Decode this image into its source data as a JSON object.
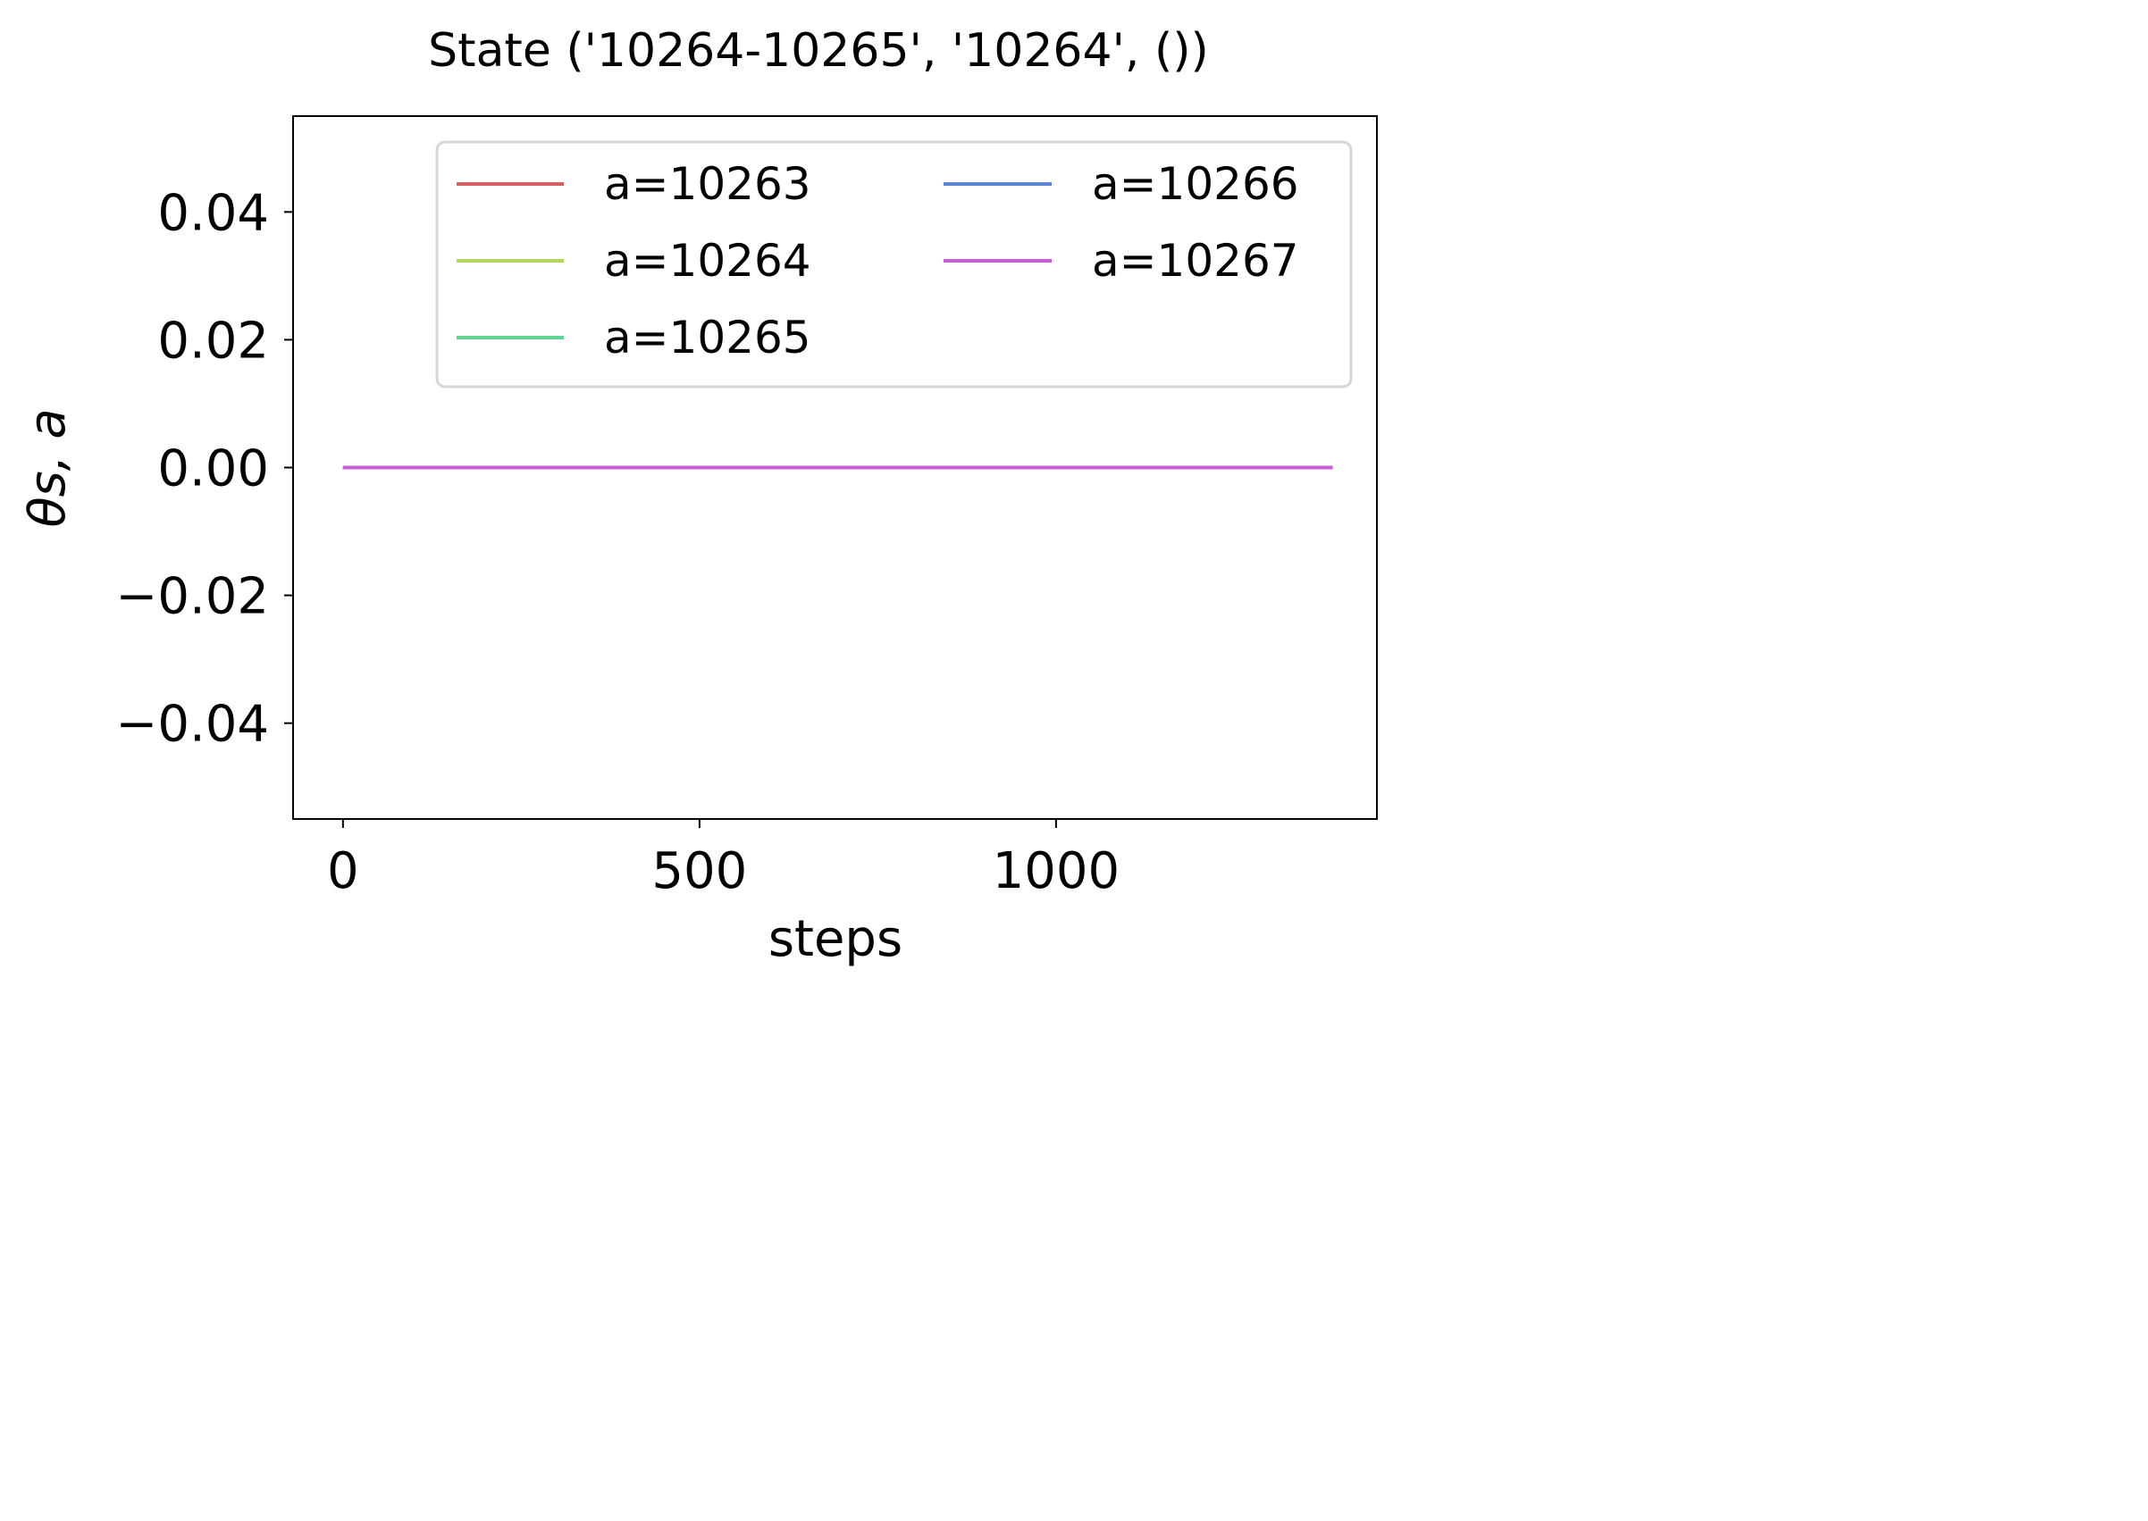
{
  "chart_data": {
    "type": "line",
    "title": "State ('10264-10265', '10264', ())",
    "xlabel": "steps",
    "ylabel": "θs, a",
    "xlim": [
      -70,
      1450
    ],
    "ylim": [
      -0.055,
      0.055
    ],
    "x_ticks": [
      {
        "value": 0,
        "label": "0"
      },
      {
        "value": 500,
        "label": "500"
      },
      {
        "value": 1000,
        "label": "1000"
      }
    ],
    "y_ticks": [
      {
        "value": 0.04,
        "label": "0.04"
      },
      {
        "value": 0.02,
        "label": "0.02"
      },
      {
        "value": 0.0,
        "label": "0.00"
      },
      {
        "value": -0.02,
        "label": "−0.02"
      },
      {
        "value": -0.04,
        "label": "−0.04"
      }
    ],
    "grid": false,
    "legend": {
      "placement": "upper right",
      "columns": 2
    },
    "series": [
      {
        "name": "a=10263",
        "color": "#d65f5f",
        "x": [
          0,
          1388
        ],
        "y": [
          0,
          0
        ]
      },
      {
        "name": "a=10264",
        "color": "#b5d65f",
        "x": [
          0,
          1388
        ],
        "y": [
          0,
          0
        ]
      },
      {
        "name": "a=10265",
        "color": "#5fd68f",
        "x": [
          0,
          1388
        ],
        "y": [
          0,
          0
        ]
      },
      {
        "name": "a=10266",
        "color": "#5f86d6",
        "x": [
          0,
          1388
        ],
        "y": [
          0,
          0
        ]
      },
      {
        "name": "a=10267",
        "color": "#c65fd6",
        "x": [
          0,
          1388
        ],
        "y": [
          0,
          0
        ]
      }
    ]
  }
}
